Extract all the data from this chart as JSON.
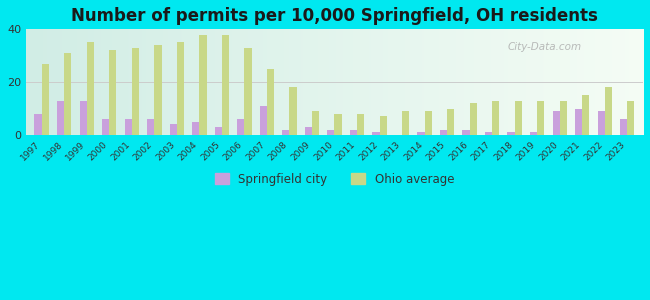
{
  "title": "Number of permits per 10,000 Springfield, OH residents",
  "years": [
    1997,
    1998,
    1999,
    2000,
    2001,
    2002,
    2003,
    2004,
    2005,
    2006,
    2007,
    2008,
    2009,
    2010,
    2011,
    2012,
    2013,
    2014,
    2015,
    2016,
    2017,
    2018,
    2019,
    2020,
    2021,
    2022,
    2023
  ],
  "springfield": [
    8,
    13,
    13,
    6,
    6,
    6,
    4,
    5,
    3,
    6,
    11,
    2,
    3,
    2,
    2,
    1,
    0,
    1,
    2,
    2,
    1,
    1,
    1,
    9,
    10,
    9,
    6
  ],
  "ohio": [
    27,
    31,
    35,
    32,
    33,
    34,
    35,
    38,
    38,
    33,
    25,
    18,
    9,
    8,
    8,
    7,
    9,
    9,
    10,
    12,
    13,
    13,
    13,
    13,
    15,
    18,
    13
  ],
  "springfield_color": "#c9a0dc",
  "ohio_color": "#c8d888",
  "background_outer": "#00e8f0",
  "background_inner_left": "#d0ede8",
  "background_inner_right": "#f5faf5",
  "title_fontsize": 12,
  "ylim": [
    0,
    40
  ],
  "yticks": [
    0,
    20,
    40
  ],
  "bar_width": 0.32,
  "legend_springfield": "Springfield city",
  "legend_ohio": "Ohio average"
}
